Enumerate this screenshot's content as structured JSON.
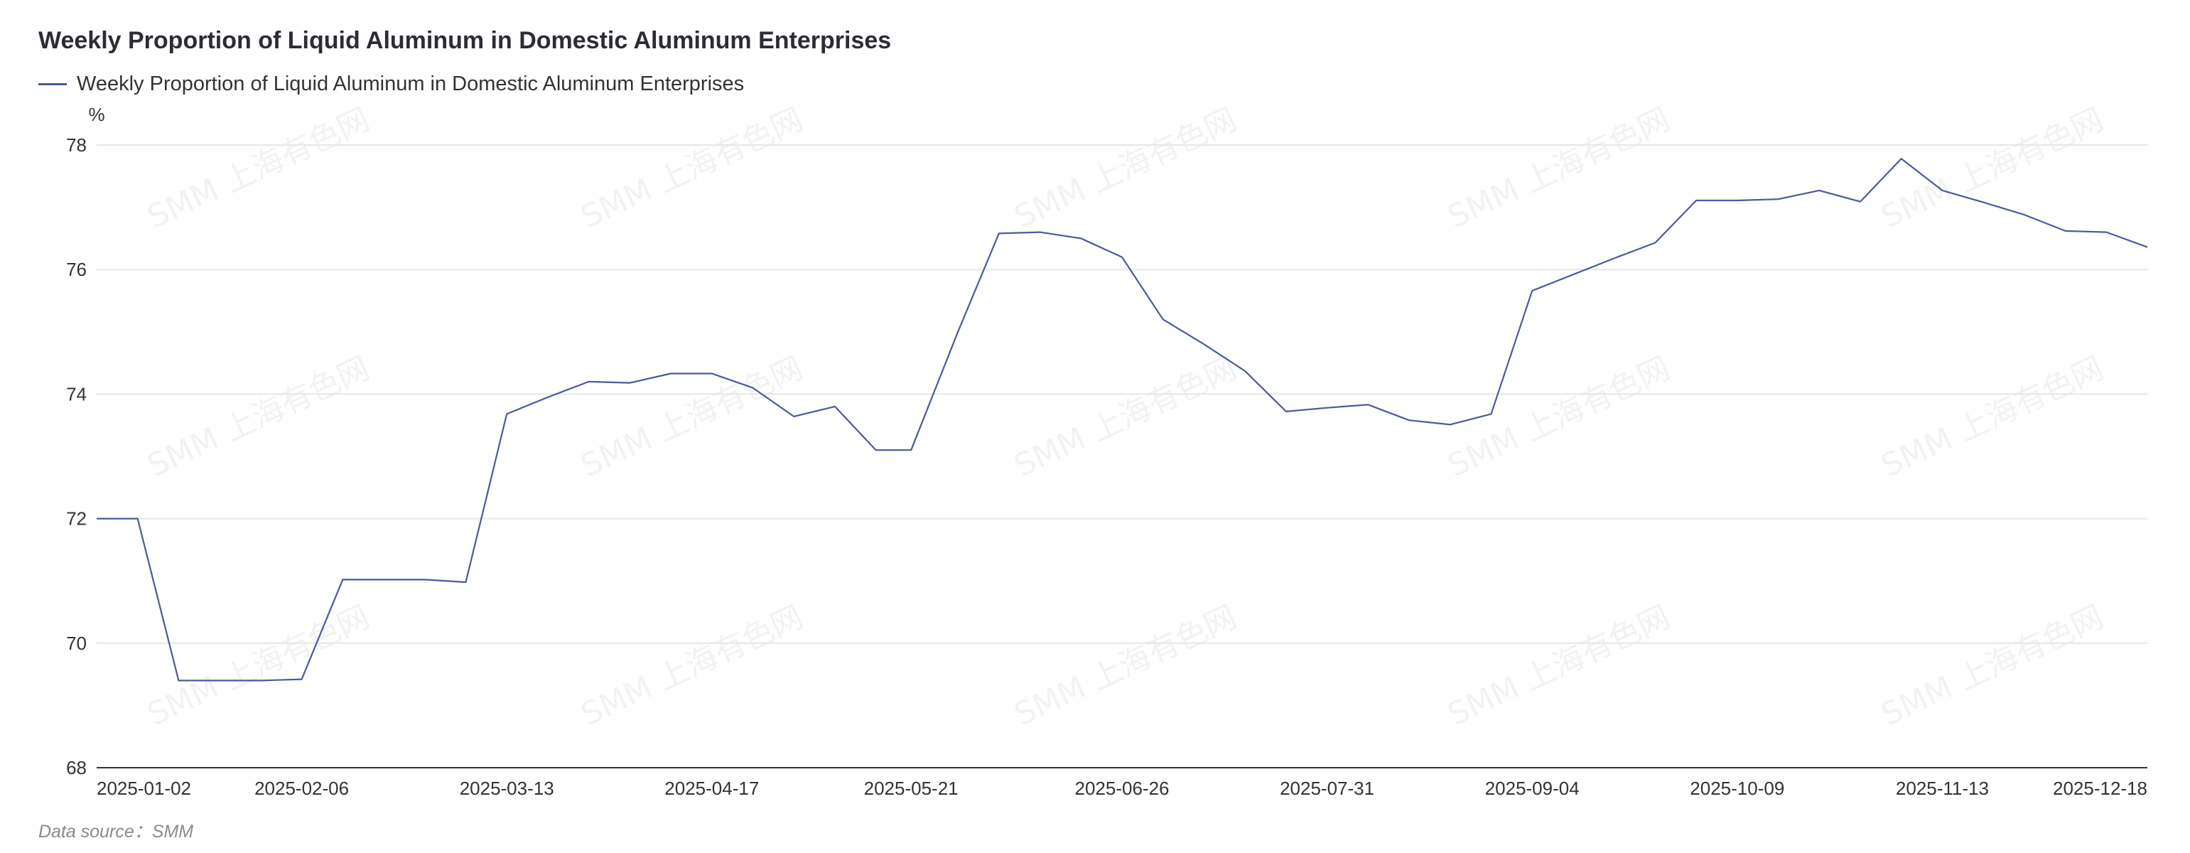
{
  "title": "Weekly Proportion of Liquid Aluminum in Domestic Aluminum Enterprises",
  "source": "Data source：SMM",
  "watermark": "SMM 上海有色网",
  "colors": {
    "series": "#4a5a9c",
    "grid": "#e6e6e6",
    "axis": "#333333"
  },
  "chart_data": {
    "type": "line",
    "title": "Weekly Proportion of Liquid Aluminum in Domestic Aluminum Enterprises",
    "ylabel": "%",
    "ylim": [
      68,
      78
    ],
    "yticks": [
      68,
      70,
      72,
      74,
      76,
      78
    ],
    "grid": true,
    "legend": "top-left",
    "xtick_labels": [
      "2025-01-02",
      "2025-02-06",
      "2025-03-13",
      "2025-04-17",
      "2025-05-21",
      "2025-06-26",
      "2025-07-31",
      "2025-09-04",
      "2025-10-09",
      "2025-11-13",
      "2025-12-18"
    ],
    "series": [
      {
        "name": "Weekly Proportion of Liquid Aluminum in Domestic Aluminum Enterprises",
        "x": [
          "2025-01-02",
          "2025-01-09",
          "2025-01-16",
          "2025-01-23",
          "2025-01-30",
          "2025-02-06",
          "2025-02-13",
          "2025-02-20",
          "2025-02-27",
          "2025-03-06",
          "2025-03-13",
          "2025-03-20",
          "2025-03-27",
          "2025-04-03",
          "2025-04-10",
          "2025-04-17",
          "2025-04-24",
          "2025-05-01",
          "2025-05-08",
          "2025-05-15",
          "2025-05-21",
          "2025-05-29",
          "2025-06-05",
          "2025-06-12",
          "2025-06-19",
          "2025-06-26",
          "2025-07-03",
          "2025-07-10",
          "2025-07-17",
          "2025-07-24",
          "2025-07-31",
          "2025-08-07",
          "2025-08-14",
          "2025-08-21",
          "2025-08-28",
          "2025-09-04",
          "2025-09-11",
          "2025-09-18",
          "2025-09-25",
          "2025-10-02",
          "2025-10-09",
          "2025-10-16",
          "2025-10-23",
          "2025-10-30",
          "2025-11-06",
          "2025-11-13",
          "2025-11-20",
          "2025-11-27",
          "2025-12-04",
          "2025-12-11",
          "2025-12-18"
        ],
        "values": [
          72.0,
          72.0,
          69.4,
          69.4,
          69.4,
          69.42,
          71.02,
          71.02,
          71.02,
          70.98,
          73.68,
          73.95,
          74.2,
          74.18,
          74.33,
          74.33,
          74.1,
          73.64,
          73.8,
          73.1,
          73.1,
          75.0,
          76.58,
          76.6,
          76.5,
          76.2,
          75.2,
          74.8,
          74.37,
          73.72,
          73.78,
          73.83,
          73.58,
          73.51,
          73.68,
          75.66,
          75.92,
          76.18,
          76.43,
          77.11,
          77.11,
          77.13,
          77.27,
          77.09,
          77.78,
          77.27,
          77.08,
          76.88,
          76.62,
          76.6,
          76.36
        ]
      }
    ]
  },
  "legend": {
    "label": "Weekly Proportion of Liquid Aluminum in Domestic Aluminum Enterprises"
  }
}
